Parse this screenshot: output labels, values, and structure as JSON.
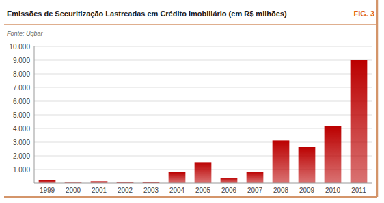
{
  "chart_data": {
    "type": "bar",
    "title": "Emissões de Securitização Lastreadas em Crédito Imobiliário (em R$ milhões)",
    "subtitle": "Fonte: Uqbar",
    "annotations": [
      "FIG. 3"
    ],
    "categories": [
      "1999",
      "2000",
      "2001",
      "2002",
      "2003",
      "2004",
      "2005",
      "2006",
      "2007",
      "2008",
      "2009",
      "2010",
      "2011"
    ],
    "values": [
      200,
      30,
      130,
      80,
      60,
      800,
      1530,
      390,
      850,
      3130,
      2650,
      4150,
      9000
    ],
    "color": "#BB0000",
    "ylim": [
      0,
      10000
    ],
    "yticks": [
      {
        "value": 1000,
        "label": "1.000"
      },
      {
        "value": 2000,
        "label": "2.000"
      },
      {
        "value": 3000,
        "label": "3.000"
      },
      {
        "value": 4000,
        "label": "4.000"
      },
      {
        "value": 5000,
        "label": "5.000"
      },
      {
        "value": 6000,
        "label": "6.000"
      },
      {
        "value": 7000,
        "label": "7.000"
      },
      {
        "value": 8000,
        "label": "8.000"
      },
      {
        "value": 9000,
        "label": "9.000"
      },
      {
        "value": 10000,
        "label": "10.000"
      }
    ],
    "grid": true
  }
}
